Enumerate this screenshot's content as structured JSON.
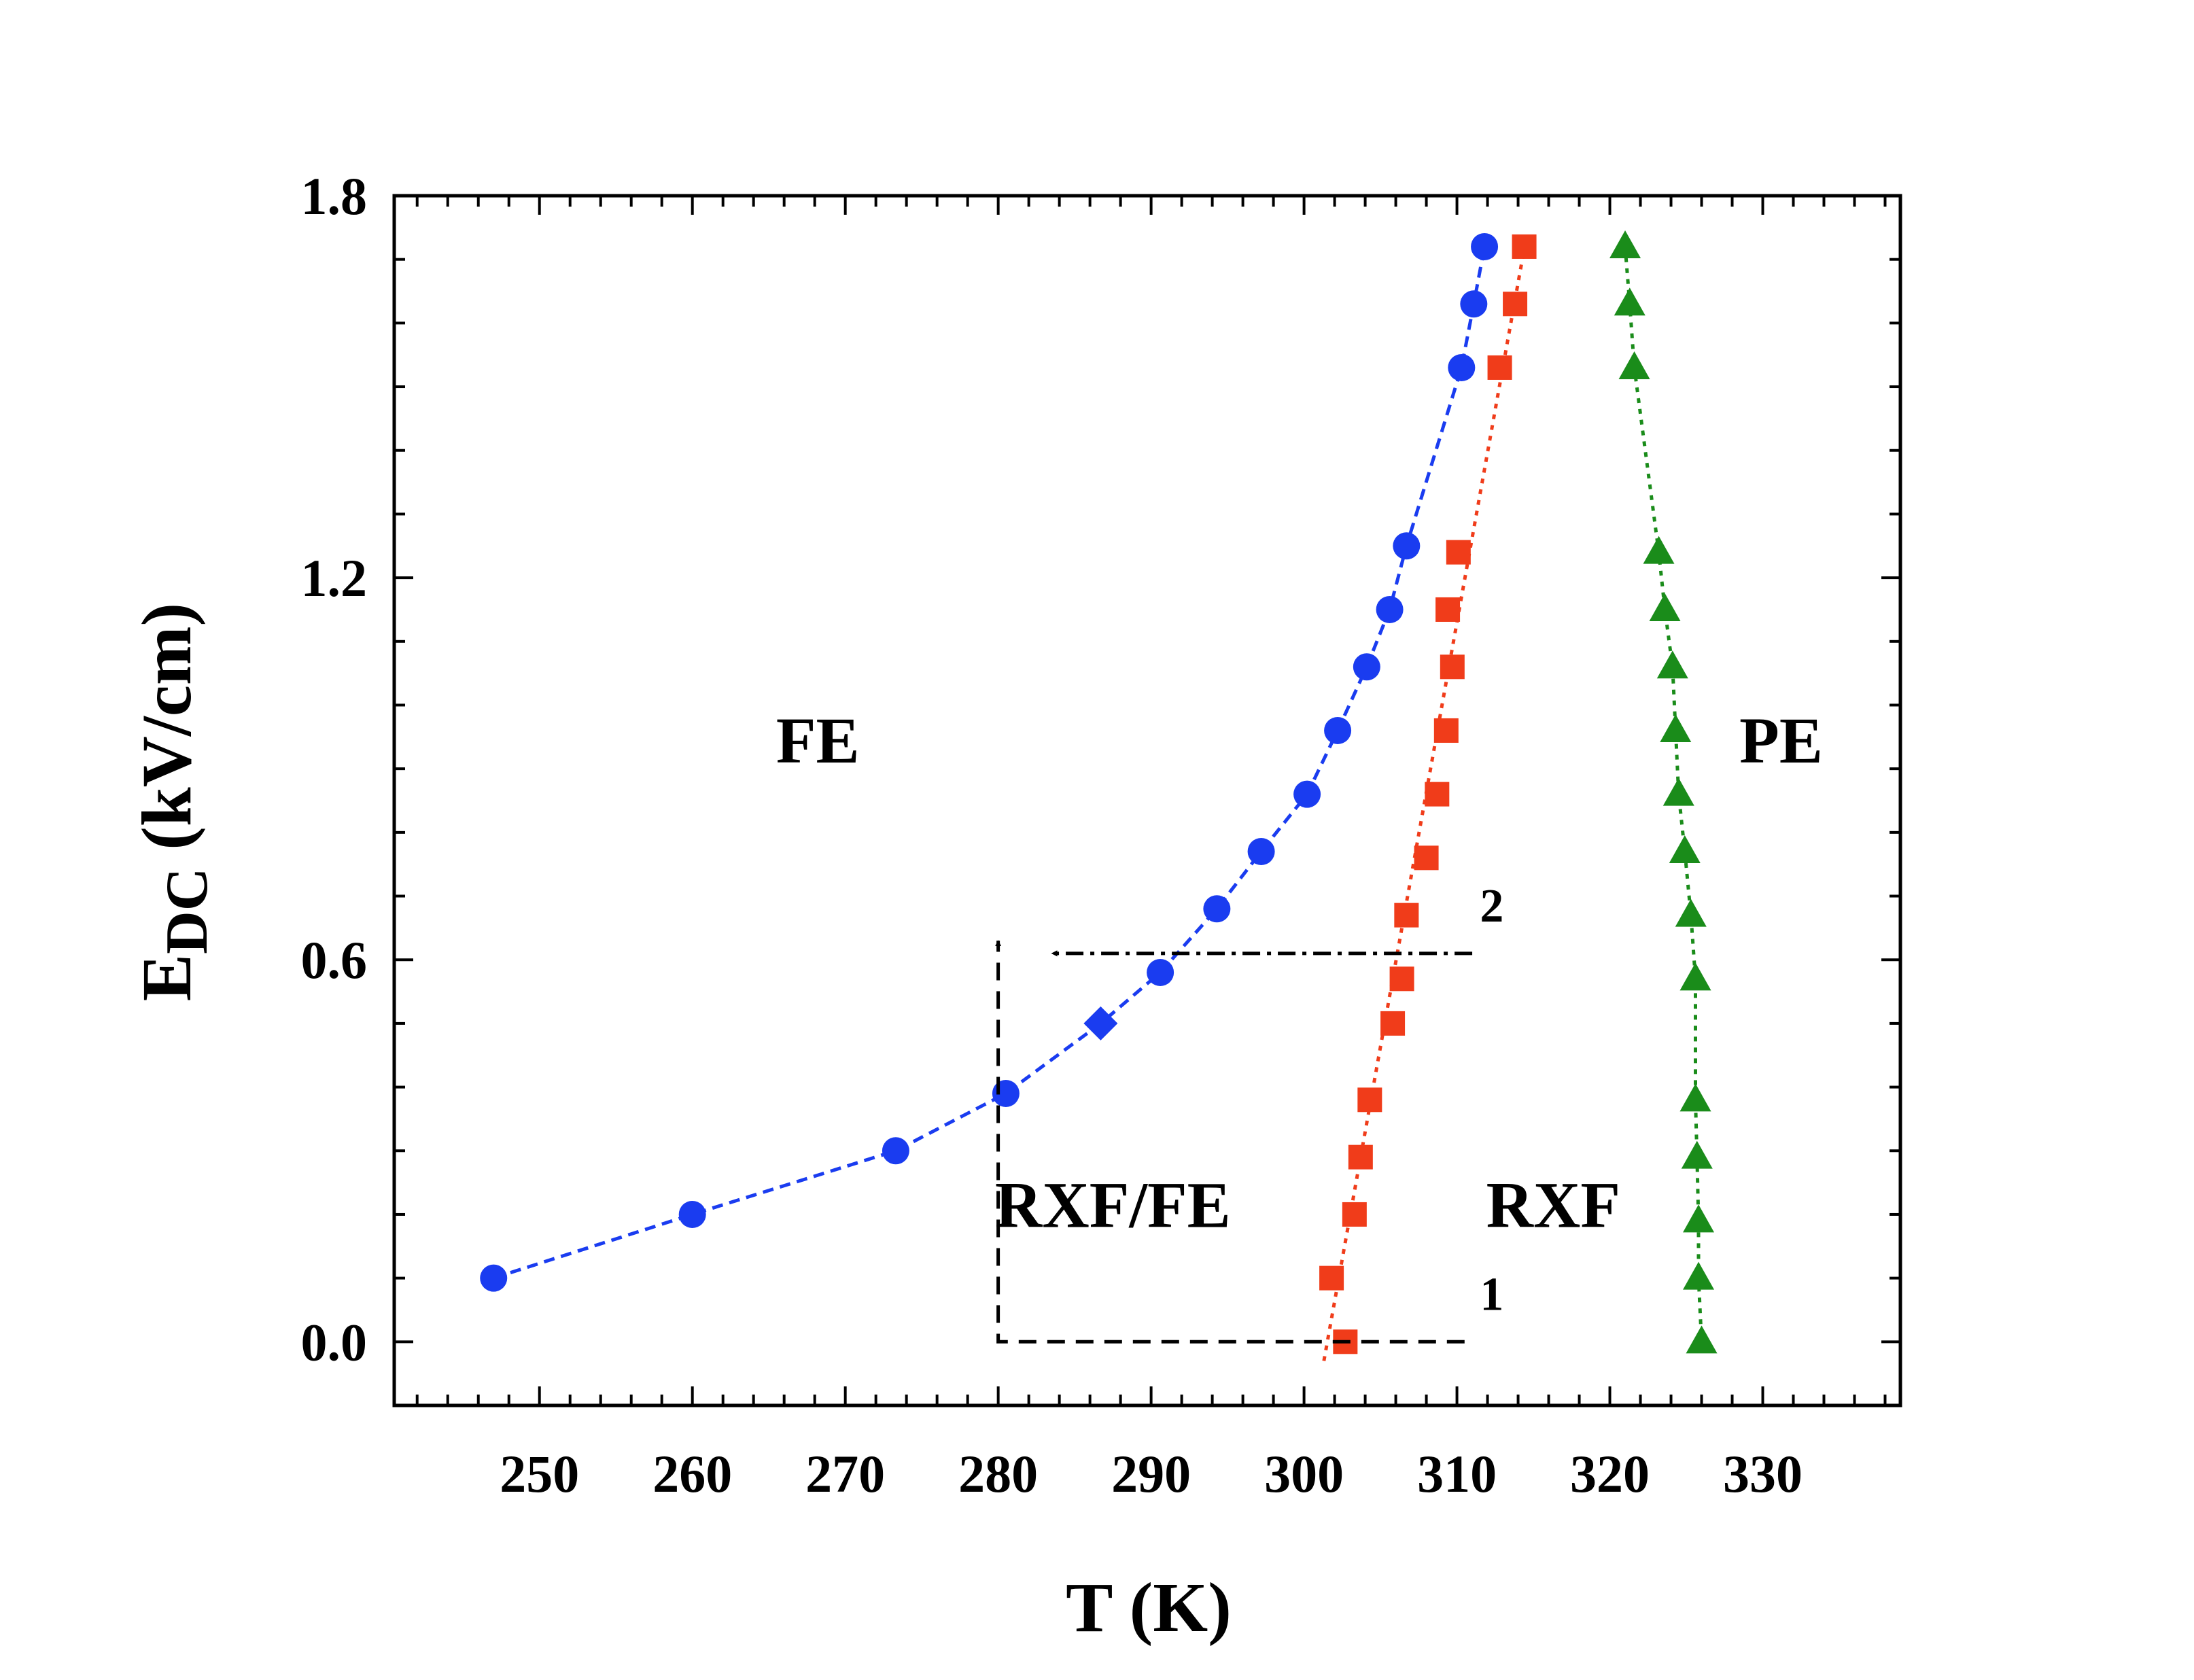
{
  "chart_data": {
    "type": "scatter",
    "xlabel": "T (K)",
    "ylabel": {
      "main": "E",
      "sub": "DC",
      "unit": " (kV/cm)"
    },
    "xlim": [
      240.5,
      339
    ],
    "ylim": [
      -0.1,
      1.8
    ],
    "xticks": [
      250,
      260,
      270,
      280,
      290,
      300,
      310,
      320,
      330
    ],
    "yticks": [
      0.0,
      0.6,
      1.2,
      1.8
    ],
    "xtick_labels": [
      "250",
      "260",
      "270",
      "280",
      "290",
      "300",
      "310",
      "320",
      "330"
    ],
    "ytick_labels": [
      "0.0",
      "0.6",
      "1.2",
      "1.8"
    ],
    "grid": false,
    "series": [
      {
        "color": "#1a3cf0",
        "marker": "circle",
        "line": "dashed",
        "points": [
          {
            "x": 247.0,
            "y": 0.1
          },
          {
            "x": 260.0,
            "y": 0.2
          },
          {
            "x": 273.3,
            "y": 0.3
          },
          {
            "x": 280.5,
            "y": 0.39
          },
          {
            "x": 286.7,
            "y": 0.5,
            "marker": "diamond"
          },
          {
            "x": 290.6,
            "y": 0.58
          },
          {
            "x": 294.3,
            "y": 0.68
          },
          {
            "x": 297.2,
            "y": 0.77
          },
          {
            "x": 300.2,
            "y": 0.86
          },
          {
            "x": 302.2,
            "y": 0.96
          },
          {
            "x": 304.1,
            "y": 1.06
          },
          {
            "x": 305.6,
            "y": 1.15
          },
          {
            "x": 306.7,
            "y": 1.25
          },
          {
            "x": 310.3,
            "y": 1.53
          },
          {
            "x": 311.1,
            "y": 1.63
          },
          {
            "x": 311.8,
            "y": 1.72
          }
        ]
      },
      {
        "color": "#f03c1a",
        "marker": "square",
        "line": "dotted",
        "points": [
          {
            "x": 301.8,
            "y": 0.1
          },
          {
            "x": 302.7,
            "y": 0.0
          },
          {
            "x": 303.3,
            "y": 0.2
          },
          {
            "x": 303.7,
            "y": 0.29
          },
          {
            "x": 304.3,
            "y": 0.38
          },
          {
            "x": 305.8,
            "y": 0.5
          },
          {
            "x": 306.4,
            "y": 0.57
          },
          {
            "x": 306.7,
            "y": 0.67
          },
          {
            "x": 308.0,
            "y": 0.76
          },
          {
            "x": 308.7,
            "y": 0.86
          },
          {
            "x": 309.3,
            "y": 0.96
          },
          {
            "x": 309.7,
            "y": 1.06
          },
          {
            "x": 309.4,
            "y": 1.15
          },
          {
            "x": 310.1,
            "y": 1.24
          },
          {
            "x": 312.8,
            "y": 1.53
          },
          {
            "x": 313.8,
            "y": 1.63
          },
          {
            "x": 314.4,
            "y": 1.72
          }
        ]
      },
      {
        "color": "#1a8c1a",
        "marker": "triangle",
        "line": "dotted",
        "points": [
          {
            "x": 321.0,
            "y": 1.72
          },
          {
            "x": 321.3,
            "y": 1.63
          },
          {
            "x": 321.6,
            "y": 1.53
          },
          {
            "x": 323.2,
            "y": 1.24
          },
          {
            "x": 323.6,
            "y": 1.15
          },
          {
            "x": 324.1,
            "y": 1.06
          },
          {
            "x": 324.3,
            "y": 0.96
          },
          {
            "x": 324.5,
            "y": 0.86
          },
          {
            "x": 324.9,
            "y": 0.77
          },
          {
            "x": 325.3,
            "y": 0.67
          },
          {
            "x": 325.6,
            "y": 0.57
          },
          {
            "x": 325.6,
            "y": 0.38
          },
          {
            "x": 325.7,
            "y": 0.29
          },
          {
            "x": 325.8,
            "y": 0.19
          },
          {
            "x": 325.8,
            "y": 0.1
          },
          {
            "x": 326.0,
            "y": 0.0
          }
        ]
      }
    ],
    "red_fit_line": {
      "from": {
        "x": 301.3,
        "y": -0.03
      },
      "to": {
        "x": 314.5,
        "y": 1.73
      }
    },
    "annotations": {
      "regions": [
        {
          "text": "FE",
          "x": 268.2,
          "y": 0.91
        },
        {
          "text": "PE",
          "x": 331.2,
          "y": 0.91
        },
        {
          "text": "RXF/FE",
          "x": 287.5,
          "y": 0.18
        },
        {
          "text": "RXF",
          "x": 316.3,
          "y": 0.18
        }
      ],
      "path1": {
        "label": "1",
        "vertices": [
          {
            "x": 310.5,
            "y": 0.0
          },
          {
            "x": 280.0,
            "y": 0.0
          },
          {
            "x": 280.0,
            "y": 0.63
          }
        ]
      },
      "path2": {
        "label": "2",
        "from": {
          "x": 311.0,
          "y": 0.61
        },
        "to": {
          "x": 283.5,
          "y": 0.61
        }
      },
      "label1_pos": {
        "x": 311.5,
        "y": 0.05
      },
      "label2_pos": {
        "x": 311.5,
        "y": 0.66
      }
    }
  }
}
